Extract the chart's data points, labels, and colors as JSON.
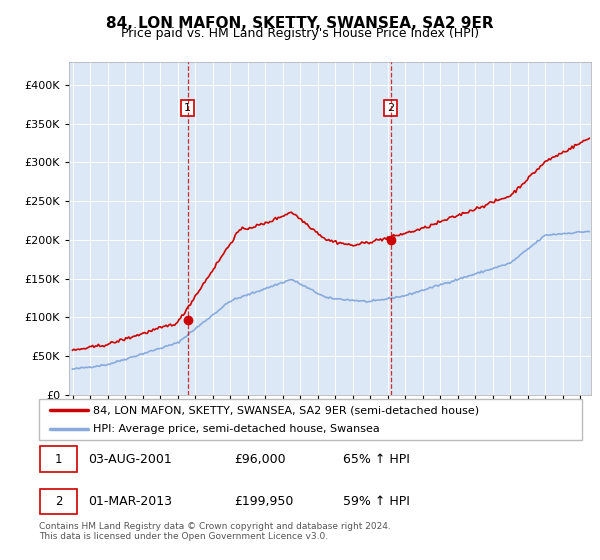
{
  "title": "84, LON MAFON, SKETTY, SWANSEA, SA2 9ER",
  "subtitle": "Price paid vs. HM Land Registry's House Price Index (HPI)",
  "ytick_values": [
    0,
    50000,
    100000,
    150000,
    200000,
    250000,
    300000,
    350000,
    400000
  ],
  "ylim": [
    0,
    430000
  ],
  "xlim_start": 1994.8,
  "xlim_end": 2024.6,
  "bg_color": "#dce8f5",
  "sale1": {
    "date_num": 2001.58,
    "price": 96000,
    "label": "1"
  },
  "sale2": {
    "date_num": 2013.17,
    "price": 199950,
    "label": "2"
  },
  "legend_line1": "84, LON MAFON, SKETTY, SWANSEA, SA2 9ER (semi-detached house)",
  "legend_line2": "HPI: Average price, semi-detached house, Swansea",
  "annotation1": [
    "1",
    "03-AUG-2001",
    "£96,000",
    "65% ↑ HPI"
  ],
  "annotation2": [
    "2",
    "01-MAR-2013",
    "£199,950",
    "59% ↑ HPI"
  ],
  "footnote": "Contains HM Land Registry data © Crown copyright and database right 2024.\nThis data is licensed under the Open Government Licence v3.0.",
  "red_color": "#cc0000",
  "blue_color": "#88aadd",
  "dashed_red": "#cc0000"
}
